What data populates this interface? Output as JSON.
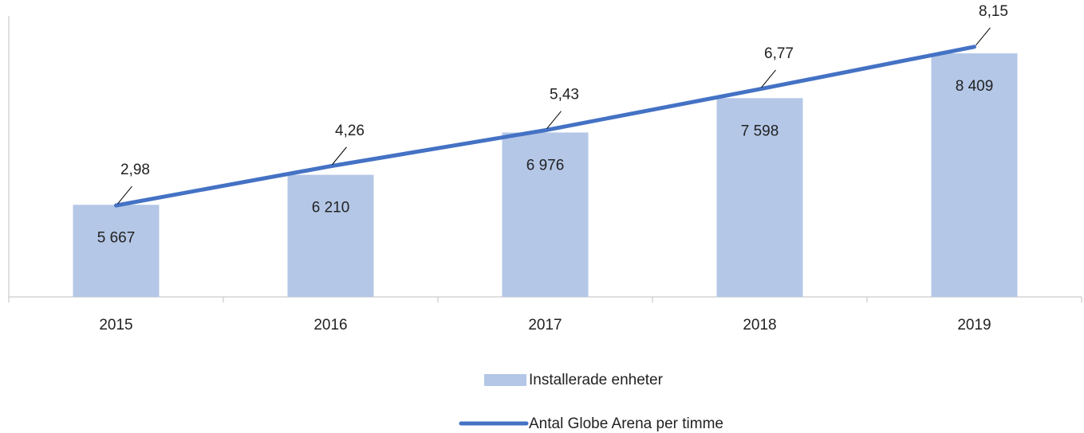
{
  "chart_data": {
    "type": "bar",
    "categories": [
      "2015",
      "2016",
      "2017",
      "2018",
      "2019"
    ],
    "ylim": [
      4000,
      9000
    ],
    "y2lim": [
      0,
      9
    ],
    "series": [
      {
        "name": "Installerade enheter",
        "type": "bar",
        "color": "#b4c7e7",
        "values": [
          5667,
          6210,
          6976,
          7598,
          8409
        ],
        "value_labels": [
          "5 667",
          "6 210",
          "6 976",
          "7 598",
          "8 409"
        ]
      },
      {
        "name": "Antal Globe  Arena per timme",
        "type": "line",
        "axis": "y2",
        "color": "#4472c4",
        "values": [
          2.98,
          4.26,
          5.43,
          6.77,
          8.15
        ],
        "value_labels": [
          "2,98",
          "4,26",
          "5,43",
          "6,77",
          "8,15"
        ]
      }
    ]
  }
}
